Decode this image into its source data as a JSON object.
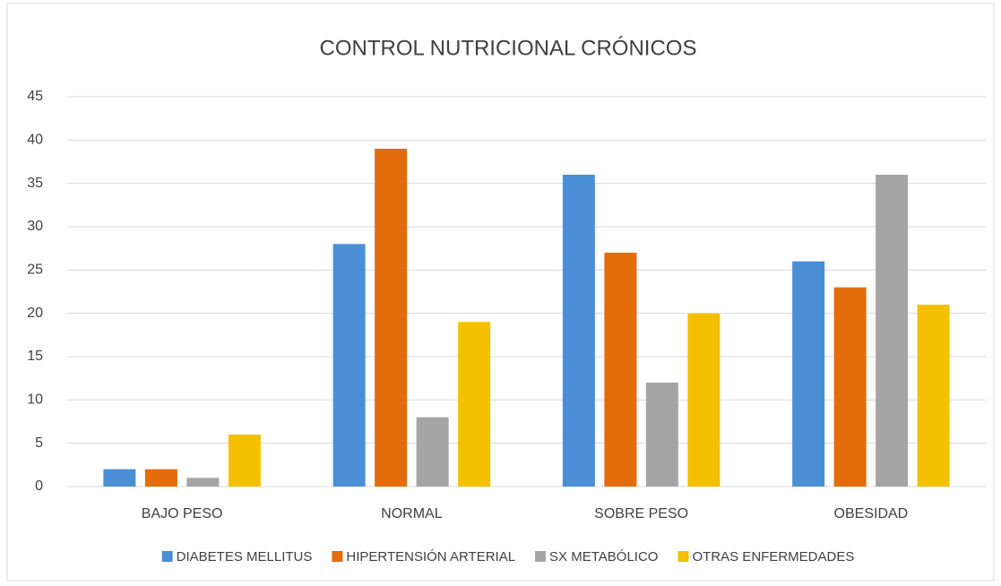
{
  "chart_data": {
    "type": "bar",
    "title": "CONTROL NUTRICIONAL CRÓNICOS",
    "categories": [
      "BAJO PESO",
      "NORMAL",
      "SOBRE PESO",
      "OBESIDAD"
    ],
    "series": [
      {
        "name": "DIABETES MELLITUS",
        "color": "#4a8fd6",
        "values": [
          2,
          28,
          36,
          26
        ]
      },
      {
        "name": "HIPERTENSIÓN ARTERIAL",
        "color": "#e46c0a",
        "values": [
          2,
          39,
          27,
          23
        ]
      },
      {
        "name": "SX METABÓLICO",
        "color": "#a5a5a5",
        "values": [
          1,
          8,
          12,
          36
        ]
      },
      {
        "name": "OTRAS ENFERMEDADES",
        "color": "#f4c000",
        "values": [
          6,
          19,
          20,
          21
        ]
      }
    ],
    "ylim": [
      0,
      45
    ],
    "yticks": [
      0,
      5,
      10,
      15,
      20,
      25,
      30,
      35,
      40,
      45
    ],
    "grid": true,
    "legend": "bottom"
  }
}
